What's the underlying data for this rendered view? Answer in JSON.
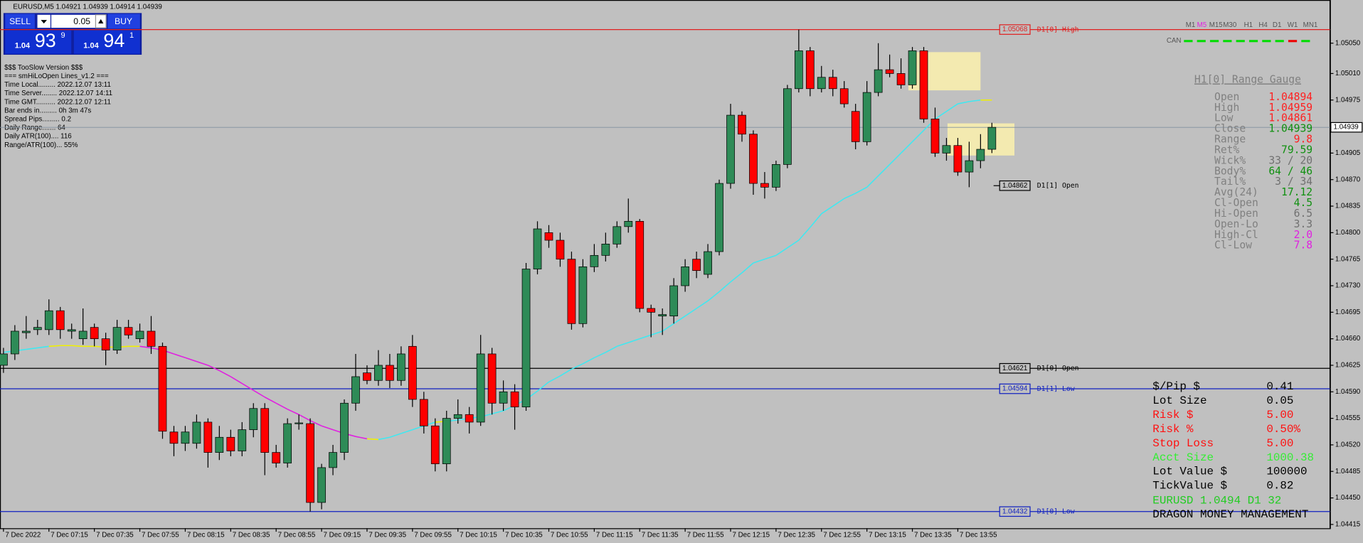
{
  "header": {
    "title": "EURUSD,M5  1.04921 1.04939 1.04914 1.04939"
  },
  "trade_panel": {
    "sell": "SELL",
    "buy": "BUY",
    "lot": "0.05",
    "bid_big": "1.04",
    "bid_pips": "93",
    "bid_frac": "9",
    "ask_big": "1.04",
    "ask_pips": "94",
    "ask_frac": "1"
  },
  "info_lines": [
    "$$$ TooSlow Version $$$",
    "=== smHiLoOpen Lines_v1.2 ===",
    "Time Local......... 2022.12.07 13:11",
    "Time Server........ 2022.12.07 14:11",
    "Time GMT.......... 2022.12.07 12:11",
    "Bar ends in......... 0h 3m 47s",
    "Spread Pips......... 0.2",
    "Daily Range....... 64",
    "Daily ATR(100).... 116",
    "Range/ATR(100)... 55%"
  ],
  "timeframes": {
    "items": [
      "M1",
      "M5",
      "M15",
      "M30",
      "H1",
      "H4",
      "D1",
      "W1",
      "MN1"
    ],
    "active": "M5",
    "active_color": "#e020e0",
    "color": "#555555"
  },
  "can": {
    "label": "CAN",
    "colors": [
      "#00dd00",
      "#00dd00",
      "#00dd00",
      "#00dd00",
      "#00dd00",
      "#00dd00",
      "#00dd00",
      "#00dd00",
      "#ee0000",
      "#00dd00"
    ]
  },
  "range_gauge": {
    "title": "H1[0] Range Gauge",
    "rows": [
      [
        "Open",
        "1.04894",
        "#ff2020"
      ],
      [
        "High",
        "1.04959",
        "#ff2020"
      ],
      [
        "Low",
        "1.04861",
        "#ff2020"
      ],
      [
        "Close",
        "1.04939",
        "#109010"
      ],
      [
        "Range",
        "9.8",
        "#ff2020"
      ],
      [
        "Ret%",
        "79.59",
        "#109010"
      ],
      [
        "Wick%",
        "33 / 20",
        "#707070"
      ],
      [
        "Body%",
        "64 / 46",
        "#109010"
      ],
      [
        "Tail%",
        "3 / 34",
        "#707070"
      ],
      [
        "Avg(24)",
        "17.12",
        "#109010"
      ],
      [
        "Cl-Open",
        "4.5",
        "#109010"
      ],
      [
        "Hi-Open",
        "6.5",
        "#707070"
      ],
      [
        "Open-Lo",
        "3.3",
        "#707070"
      ],
      [
        "High-Cl",
        "2.0",
        "#e020e0"
      ],
      [
        "Cl-Low",
        "7.8",
        "#e020e0"
      ]
    ]
  },
  "money_panel": {
    "rows": [
      [
        "$/Pip $",
        "0.41",
        "#000000"
      ],
      [
        "Lot Size",
        "0.05",
        "#000000"
      ],
      [
        "Risk $",
        "5.00",
        "#ff1010"
      ],
      [
        "Risk %",
        "0.50%",
        "#ff1010"
      ],
      [
        "Stop Loss",
        "5.00",
        "#ff1010"
      ],
      [
        "Acct Size",
        "1000.38",
        "#33ee33"
      ],
      [
        "Lot Value $",
        "100000",
        "#000000"
      ],
      [
        "TickValue $",
        "0.82",
        "#000000"
      ]
    ],
    "symbol_line": "EURUSD 1.0494 D1 32",
    "symbol_color": "#22cc22",
    "footer": "DRAGON MONEY MANAGEMENT"
  },
  "chart_data": {
    "type": "candlestick",
    "up_color": "#2e8b57",
    "down_color": "#ff0000",
    "categories": [
      "7 Dec 2022",
      null,
      null,
      null,
      "7 Dec 07:15",
      null,
      null,
      null,
      "7 Dec 07:35",
      null,
      null,
      null,
      "7 Dec 07:55",
      null,
      null,
      null,
      "7 Dec 08:15",
      null,
      null,
      null,
      "7 Dec 08:35",
      null,
      null,
      null,
      "7 Dec 08:55",
      null,
      null,
      null,
      "7 Dec 09:15",
      null,
      null,
      null,
      "7 Dec 09:35",
      null,
      null,
      null,
      "7 Dec 09:55",
      null,
      null,
      null,
      "7 Dec 10:15",
      null,
      null,
      null,
      "7 Dec 10:35",
      null,
      null,
      null,
      "7 Dec 10:55",
      null,
      null,
      null,
      "7 Dec 11:15",
      null,
      null,
      null,
      "7 Dec 11:35",
      null,
      null,
      null,
      "7 Dec 11:55",
      null,
      null,
      null,
      "7 Dec 12:15",
      null,
      null,
      null,
      "7 Dec 12:35",
      null,
      null,
      null,
      "7 Dec 12:55",
      null,
      null,
      null,
      "7 Dec 13:15",
      null,
      null,
      null,
      "7 Dec 13:35",
      null,
      null,
      null,
      "7 Dec 13:55",
      null,
      null,
      null
    ],
    "open": [
      1.04625,
      1.0464,
      1.04668,
      1.04672,
      1.04672,
      1.04697,
      1.0467,
      1.0466,
      1.04675,
      1.0466,
      1.04645,
      1.04675,
      1.0466,
      1.0467,
      1.0465,
      1.04537,
      1.04522,
      1.04522,
      1.0455,
      1.0451,
      1.0453,
      1.04512,
      1.0454,
      1.04568,
      1.0451,
      1.04496,
      1.04548,
      1.04548,
      1.04444,
      1.0449,
      1.0451,
      1.04575,
      1.04615,
      1.04605,
      1.04625,
      1.04605,
      1.0465,
      1.0458,
      1.04545,
      1.04495,
      1.04555,
      1.0456,
      1.0455,
      1.0464,
      1.04575,
      1.0459,
      1.0457,
      1.04752,
      1.048,
      1.0479,
      1.04765,
      1.0468,
      1.04755,
      1.0477,
      1.04785,
      1.04808,
      1.04815,
      1.047,
      1.0469,
      1.0469,
      1.0473,
      1.04765,
      1.04745,
      1.04775,
      1.04865,
      1.04955,
      1.0493,
      1.04865,
      1.0486,
      1.0489,
      1.0499,
      1.0504,
      1.0499,
      1.05005,
      1.0499,
      1.0496,
      1.0492,
      1.04985,
      1.05015,
      1.0501,
      1.04995,
      1.0504,
      1.0495,
      1.04905,
      1.04915,
      1.0488,
      1.04895,
      1.0491
    ],
    "high": [
      1.04648,
      1.04678,
      1.0469,
      1.04685,
      1.04712,
      1.04702,
      1.0468,
      1.047,
      1.0468,
      1.04668,
      1.04685,
      1.04685,
      1.0468,
      1.0469,
      1.04655,
      1.04545,
      1.04545,
      1.0456,
      1.04555,
      1.04545,
      1.0454,
      1.0455,
      1.04575,
      1.04575,
      1.0452,
      1.04555,
      1.0456,
      1.04555,
      1.04495,
      1.0452,
      1.0458,
      1.0464,
      1.04625,
      1.04645,
      1.0464,
      1.0465,
      1.04665,
      1.0459,
      1.04555,
      1.04565,
      1.0458,
      1.0457,
      1.04665,
      1.04648,
      1.04605,
      1.046,
      1.0476,
      1.04815,
      1.0481,
      1.048,
      1.04775,
      1.04765,
      1.04785,
      1.048,
      1.04815,
      1.04845,
      1.04818,
      1.04705,
      1.047,
      1.0474,
      1.04765,
      1.04775,
      1.04785,
      1.0487,
      1.0497,
      1.0496,
      1.04935,
      1.0488,
      1.04895,
      1.04995,
      1.05068,
      1.05045,
      1.0502,
      1.05015,
      1.05,
      1.0497,
      1.05,
      1.0505,
      1.05035,
      1.0503,
      1.05045,
      1.05045,
      1.04965,
      1.04925,
      1.04925,
      1.0492,
      1.0493,
      1.04945
    ],
    "low": [
      1.04615,
      1.04632,
      1.0466,
      1.04665,
      1.04665,
      1.0466,
      1.0466,
      1.04652,
      1.0465,
      1.04625,
      1.0464,
      1.0466,
      1.04655,
      1.0464,
      1.04528,
      1.04505,
      1.04512,
      1.04515,
      1.0449,
      1.045,
      1.04505,
      1.04505,
      1.0453,
      1.0448,
      1.0449,
      1.0449,
      1.0454,
      1.04432,
      1.04435,
      1.0448,
      1.045,
      1.04565,
      1.046,
      1.04598,
      1.04595,
      1.04598,
      1.0457,
      1.04535,
      1.04485,
      1.04485,
      1.04548,
      1.04535,
      1.04545,
      1.0456,
      1.04565,
      1.0454,
      1.04565,
      1.04745,
      1.0478,
      1.04755,
      1.04672,
      1.04675,
      1.04748,
      1.04762,
      1.0478,
      1.048,
      1.04695,
      1.04662,
      1.04665,
      1.0468,
      1.04722,
      1.0474,
      1.0474,
      1.0477,
      1.04858,
      1.0492,
      1.0485,
      1.04845,
      1.04855,
      1.04885,
      1.04985,
      1.0498,
      1.04985,
      1.0498,
      1.04965,
      1.0491,
      1.04915,
      1.0498,
      1.05005,
      1.0499,
      1.0499,
      1.04945,
      1.049,
      1.04895,
      1.04875,
      1.0486,
      1.04885,
      1.04905
    ],
    "close": [
      1.0464,
      1.0467,
      1.0467,
      1.04675,
      1.04697,
      1.04672,
      1.04672,
      1.0467,
      1.0466,
      1.04645,
      1.04675,
      1.04665,
      1.0467,
      1.0465,
      1.04538,
      1.04522,
      1.04537,
      1.0455,
      1.0451,
      1.0453,
      1.04512,
      1.0454,
      1.04568,
      1.0451,
      1.04496,
      1.04548,
      1.04549,
      1.04444,
      1.0449,
      1.0451,
      1.04575,
      1.0461,
      1.04605,
      1.04625,
      1.04605,
      1.0464,
      1.0458,
      1.04545,
      1.04495,
      1.04555,
      1.0456,
      1.0455,
      1.0464,
      1.04575,
      1.0459,
      1.0457,
      1.04752,
      1.04805,
      1.0479,
      1.04765,
      1.0468,
      1.04755,
      1.0477,
      1.04785,
      1.04808,
      1.04815,
      1.047,
      1.04695,
      1.04692,
      1.0473,
      1.04755,
      1.0475,
      1.04775,
      1.04865,
      1.04955,
      1.0493,
      1.04865,
      1.0486,
      1.0489,
      1.0499,
      1.0504,
      1.0499,
      1.05005,
      1.0499,
      1.0497,
      1.0492,
      1.04985,
      1.05015,
      1.0501,
      1.04995,
      1.0504,
      1.0495,
      1.04905,
      1.04915,
      1.0488,
      1.04895,
      1.0491,
      1.04939
    ],
    "ma": {
      "up_color": "#40e8f0",
      "down_color": "#e020e0",
      "flat_color": "#f0f000",
      "values": [
        1.04642,
        1.04644,
        1.04646,
        1.04648,
        1.0465,
        1.04651,
        1.04651,
        1.0465,
        1.0465,
        1.04649,
        1.04649,
        1.0465,
        1.0465,
        1.04648,
        1.04645,
        1.0464,
        1.04635,
        1.0463,
        1.04625,
        1.04618,
        1.0461,
        1.04601,
        1.04592,
        1.04583,
        1.04575,
        1.04567,
        1.0456,
        1.04552,
        1.04545,
        1.0454,
        1.04535,
        1.04531,
        1.04528,
        1.04527,
        1.0453,
        1.04535,
        1.0454,
        1.04545,
        1.0455,
        1.04551,
        1.04553,
        1.04555,
        1.04557,
        1.04561,
        1.04565,
        1.04572,
        1.0458,
        1.04591,
        1.04603,
        1.04611,
        1.0462,
        1.04627,
        1.04635,
        1.04642,
        1.0465,
        1.04655,
        1.0466,
        1.04665,
        1.0467,
        1.0468,
        1.0469,
        1.047,
        1.0471,
        1.04722,
        1.04735,
        1.04747,
        1.0476,
        1.04765,
        1.0477,
        1.0478,
        1.0479,
        1.04807,
        1.04825,
        1.04835,
        1.04845,
        1.04852,
        1.0486,
        1.04875,
        1.0489,
        1.04905,
        1.0492,
        1.04935,
        1.0495,
        1.0496,
        1.0497,
        1.04973,
        1.04975,
        1.04975
      ]
    },
    "ylim": [
      1.0441,
      1.05107
    ],
    "yticks": [
      {
        "value": 1.0505,
        "label": "1.05050"
      },
      {
        "value": 1.0501,
        "label": "1.05010"
      },
      {
        "value": 1.04975,
        "label": "1.04975"
      },
      {
        "value": 1.04905,
        "label": "1.04905"
      },
      {
        "value": 1.0487,
        "label": "1.04870"
      },
      {
        "value": 1.04835,
        "label": "1.04835"
      },
      {
        "value": 1.048,
        "label": "1.04800"
      },
      {
        "value": 1.04765,
        "label": "1.04765"
      },
      {
        "value": 1.0473,
        "label": "1.04730"
      },
      {
        "value": 1.04695,
        "label": "1.04695"
      },
      {
        "value": 1.0466,
        "label": "1.04660"
      },
      {
        "value": 1.04625,
        "label": "1.04625"
      },
      {
        "value": 1.0459,
        "label": "1.04590"
      },
      {
        "value": 1.04555,
        "label": "1.04555"
      },
      {
        "value": 1.0452,
        "label": "1.04520"
      },
      {
        "value": 1.04485,
        "label": "1.04485"
      },
      {
        "value": 1.0445,
        "label": "1.04450"
      },
      {
        "value": 1.04415,
        "label": "1.04415"
      }
    ],
    "current_price": 1.04939,
    "levels": [
      {
        "name": "D1[0] High",
        "value": 1.05068,
        "color": "#e02020",
        "full_width": true
      },
      {
        "name": "D1[1] Open",
        "value": 1.04862,
        "color": "#000000",
        "full_width": false
      },
      {
        "name": "D1[0] Open",
        "value": 1.04621,
        "color": "#000000",
        "full_width": true
      },
      {
        "name": "D1[1] Low",
        "value": 1.04594,
        "color": "#1020c0",
        "full_width": true
      },
      {
        "name": "D1[0] Low",
        "value": 1.04432,
        "color": "#1020c0",
        "full_width": true
      }
    ]
  }
}
